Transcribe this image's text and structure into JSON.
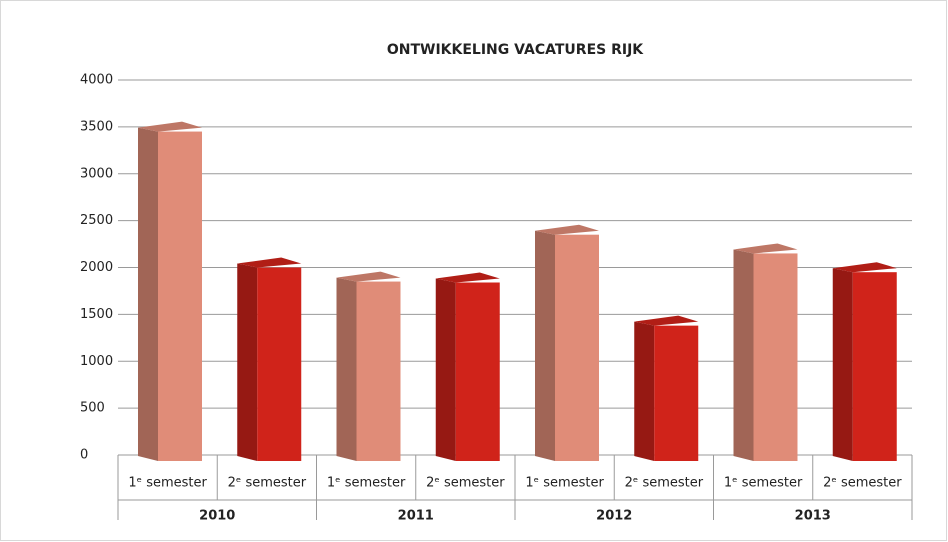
{
  "chart_data": {
    "type": "bar3d",
    "title": "ONTWIKKELING VACATURES RIJK",
    "categories": [
      "1ᵉ semester",
      "2ᵉ semester",
      "1ᵉ semester",
      "2ᵉ semester",
      "1ᵉ semester",
      "2ᵉ semester",
      "1ᵉ semester",
      "2ᵉ semester"
    ],
    "groups": [
      "2010",
      "2011",
      "2012",
      "2013"
    ],
    "values": [
      3450,
      2000,
      1850,
      1840,
      2350,
      1380,
      2150,
      1950
    ],
    "colors": [
      "#e08c78",
      "#d0231a"
    ],
    "ylim": [
      0,
      4000
    ],
    "yticks": [
      0,
      500,
      1000,
      1500,
      2000,
      2500,
      3000,
      3500,
      4000
    ],
    "grid": true
  }
}
